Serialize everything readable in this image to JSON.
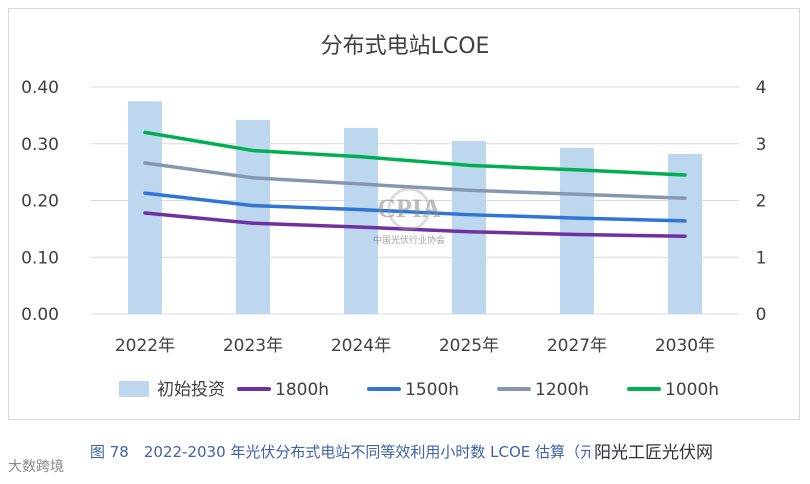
{
  "chart_data": {
    "type": "bar",
    "title": "分布式电站LCOE",
    "categories": [
      "2022年",
      "2023年",
      "2024年",
      "2025年",
      "2027年",
      "2030年"
    ],
    "bar_series": {
      "name": "初始投资",
      "axis": "right",
      "values": [
        3.75,
        3.42,
        3.28,
        3.05,
        2.93,
        2.82
      ],
      "color": "#bdd7ee"
    },
    "series": [
      {
        "name": "1800h",
        "axis": "left",
        "values": [
          0.178,
          0.16,
          0.153,
          0.145,
          0.14,
          0.137
        ],
        "color": "#7030a0"
      },
      {
        "name": "1500h",
        "axis": "left",
        "values": [
          0.213,
          0.191,
          0.184,
          0.175,
          0.169,
          0.164
        ],
        "color": "#2e75d6"
      },
      {
        "name": "1200h",
        "axis": "left",
        "values": [
          0.266,
          0.24,
          0.229,
          0.218,
          0.211,
          0.204
        ],
        "color": "#8497b0"
      },
      {
        "name": "1000h",
        "axis": "left",
        "values": [
          0.32,
          0.288,
          0.277,
          0.262,
          0.254,
          0.245
        ],
        "color": "#00b050"
      }
    ],
    "y_left": {
      "ylim": [
        0,
        0.4
      ],
      "ticks": [
        "0.00",
        "0.10",
        "0.20",
        "0.30",
        "0.40"
      ]
    },
    "y_right": {
      "ylim": [
        0,
        4
      ],
      "ticks": [
        "0",
        "1",
        "2",
        "3",
        "4"
      ]
    },
    "grid": true,
    "legend_position": "bottom"
  },
  "caption": "图 78　2022-2030 年光伏分布式电站不同等效利用小时数 LCOE 估算（元/kWh）",
  "watermark": {
    "cpia_logo": "CPIA",
    "cpia_org": "中国光伏行业协会",
    "left": "大数跨境",
    "right": "阳光工匠光伏网"
  }
}
